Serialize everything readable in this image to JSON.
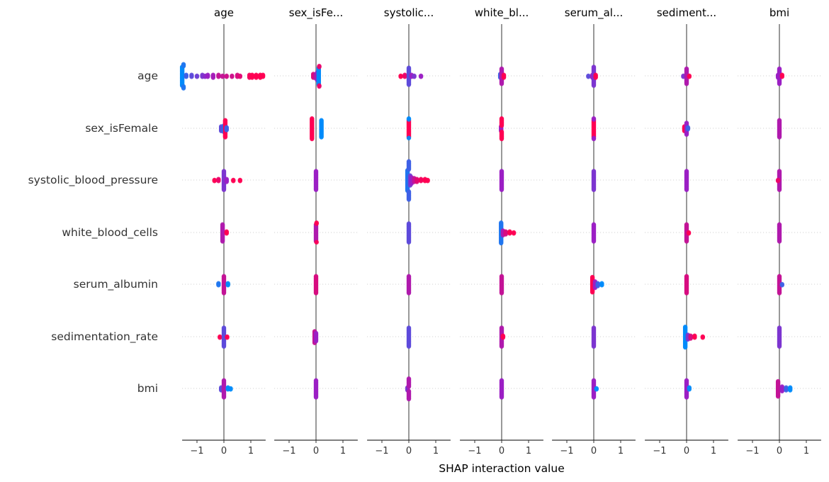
{
  "chart_data": {
    "type": "scatter",
    "subtype": "beeswarm-interaction-grid",
    "xlabel": "SHAP interaction value",
    "xlim": [
      -1.55,
      1.55
    ],
    "xticks": [
      -1,
      0,
      1
    ],
    "xtick_labels": [
      "−1",
      "0",
      "1"
    ],
    "grid": false,
    "colors": {
      "low": "#008bfb",
      "mid": "#9b1fc4",
      "high": "#ff0052",
      "zero_line": "#999999",
      "row_line": "#cccccc"
    },
    "panel_titles": [
      "age",
      "sex_isFe...",
      "systolic...",
      "white_bl...",
      "serum_al...",
      "sediment...",
      "bmi"
    ],
    "row_labels": [
      "age",
      "sex_isFemale",
      "systolic_blood_pressure",
      "white_blood_cells",
      "serum_albumin",
      "sedimentation_rate",
      "bmi"
    ],
    "point_format": [
      "shap_value",
      "feature_value_0_to_1",
      "count"
    ],
    "cells": [
      [
        [
          [
            -1.55,
            0,
            22
          ],
          [
            -1.5,
            0.1,
            6
          ],
          [
            -1.4,
            0.2,
            3
          ],
          [
            -1.2,
            0.3,
            3
          ],
          [
            -1.0,
            0.35,
            2
          ],
          [
            -0.8,
            0.4,
            3
          ],
          [
            -0.7,
            0.45,
            2
          ],
          [
            -0.6,
            0.5,
            3
          ],
          [
            -0.4,
            0.55,
            4
          ],
          [
            -0.2,
            0.7,
            3
          ],
          [
            -0.05,
            0.7,
            2
          ],
          [
            0.1,
            0.75,
            2
          ],
          [
            0.3,
            0.75,
            2
          ],
          [
            0.5,
            0.8,
            3
          ],
          [
            0.6,
            0.85,
            2
          ],
          [
            0.95,
            0.95,
            4
          ],
          [
            1.05,
            1,
            4
          ],
          [
            1.2,
            1,
            4
          ],
          [
            1.35,
            1,
            4
          ],
          [
            1.45,
            1,
            3
          ]
        ],
        [
          [
            -0.1,
            0.8,
            5
          ],
          [
            0,
            0.6,
            6
          ],
          [
            0.05,
            0.5,
            4
          ],
          [
            0.1,
            0,
            20
          ],
          [
            0.12,
            0.9,
            4
          ]
        ],
        [
          [
            -0.3,
            1,
            2
          ],
          [
            -0.15,
            0.9,
            3
          ],
          [
            0,
            0.3,
            20
          ],
          [
            0.1,
            0.5,
            3
          ],
          [
            0.2,
            0.4,
            2
          ],
          [
            0.45,
            0.5,
            2
          ]
        ],
        [
          [
            -0.05,
            0.2,
            5
          ],
          [
            0,
            0.6,
            18
          ],
          [
            0.08,
            1,
            4
          ]
        ],
        [
          [
            -0.2,
            0.3,
            2
          ],
          [
            -0.05,
            0.5,
            4
          ],
          [
            0,
            0.4,
            18
          ],
          [
            0.07,
            1,
            4
          ]
        ],
        [
          [
            -0.12,
            0.4,
            2
          ],
          [
            0,
            0.6,
            18
          ],
          [
            0.1,
            1,
            2
          ]
        ],
        [
          [
            -0.05,
            0.5,
            4
          ],
          [
            0,
            0.5,
            18
          ],
          [
            0.1,
            1,
            3
          ]
        ]
      ],
      [
        [
          [
            -0.1,
            0.3,
            6
          ],
          [
            0,
            0.1,
            8
          ],
          [
            0.05,
            1,
            20
          ],
          [
            0.1,
            0.2,
            4
          ]
        ],
        [
          [
            -0.15,
            1,
            24
          ],
          [
            0.2,
            0,
            20
          ]
        ],
        [
          [
            0,
            1,
            20
          ],
          [
            0,
            0,
            3
          ]
        ],
        [
          [
            -0.02,
            0.5,
            6
          ],
          [
            0,
            1,
            18
          ]
        ],
        [
          [
            0,
            1,
            20
          ],
          [
            0,
            0.5,
            4
          ]
        ],
        [
          [
            -0.08,
            1,
            6
          ],
          [
            0,
            0.5,
            14
          ],
          [
            0.05,
            0.2,
            3
          ]
        ],
        [
          [
            0,
            0.6,
            20
          ]
        ]
      ],
      [
        [
          [
            -0.35,
            1,
            2
          ],
          [
            -0.2,
            0.9,
            3
          ],
          [
            0,
            0.4,
            22
          ],
          [
            0.1,
            0.5,
            4
          ],
          [
            0.35,
            1,
            2
          ],
          [
            0.6,
            1,
            2
          ]
        ],
        [
          [
            0,
            0.5,
            22
          ]
        ],
        [
          [
            -0.05,
            0.1,
            24
          ],
          [
            0,
            0.2,
            20
          ],
          [
            0.05,
            0.35,
            12
          ],
          [
            0.1,
            0.5,
            8
          ],
          [
            0.2,
            0.7,
            5
          ],
          [
            0.3,
            0.85,
            4
          ],
          [
            0.45,
            0.95,
            3
          ],
          [
            0.6,
            1,
            3
          ],
          [
            0.7,
            1,
            2
          ]
        ],
        [
          [
            0,
            0.5,
            22
          ]
        ],
        [
          [
            0,
            0.4,
            22
          ]
        ],
        [
          [
            0,
            0.5,
            22
          ]
        ],
        [
          [
            0,
            0.6,
            22
          ],
          [
            -0.05,
            0.9,
            2
          ]
        ]
      ],
      [
        [
          [
            -0.05,
            0.6,
            20
          ],
          [
            0.1,
            1,
            3
          ]
        ],
        [
          [
            0,
            0.6,
            20
          ],
          [
            0.02,
            1,
            3
          ]
        ],
        [
          [
            0,
            0.3,
            22
          ]
        ],
        [
          [
            -0.02,
            0.1,
            24
          ],
          [
            0.05,
            0.6,
            6
          ],
          [
            0.15,
            0.8,
            4
          ],
          [
            0.3,
            1,
            3
          ],
          [
            0.45,
            1,
            2
          ]
        ],
        [
          [
            0,
            0.5,
            20
          ]
        ],
        [
          [
            0,
            0.7,
            20
          ],
          [
            0.08,
            1,
            2
          ]
        ],
        [
          [
            0,
            0.6,
            20
          ]
        ]
      ],
      [
        [
          [
            -0.2,
            0.1,
            3
          ],
          [
            0,
            0.7,
            20
          ],
          [
            0.15,
            0,
            3
          ]
        ],
        [
          [
            0,
            0.8,
            20
          ]
        ],
        [
          [
            0,
            0.6,
            20
          ]
        ],
        [
          [
            0,
            0.7,
            20
          ]
        ],
        [
          [
            -0.05,
            1,
            18
          ],
          [
            0.05,
            0.5,
            8
          ],
          [
            0.15,
            0.2,
            4
          ],
          [
            0.3,
            0,
            3
          ]
        ],
        [
          [
            0,
            0.8,
            20
          ]
        ],
        [
          [
            0,
            0.7,
            20
          ],
          [
            0.1,
            0.2,
            2
          ]
        ]
      ],
      [
        [
          [
            -0.15,
            1,
            2
          ],
          [
            0,
            0.3,
            22
          ],
          [
            0.12,
            1,
            2
          ]
        ],
        [
          [
            -0.05,
            0.7,
            14
          ],
          [
            0,
            0.5,
            10
          ]
        ],
        [
          [
            0,
            0.3,
            22
          ]
        ],
        [
          [
            0,
            0.6,
            22
          ],
          [
            0.05,
            1,
            3
          ]
        ],
        [
          [
            0,
            0.4,
            22
          ]
        ],
        [
          [
            -0.05,
            0,
            24
          ],
          [
            0.05,
            0.4,
            6
          ],
          [
            0.15,
            0.8,
            4
          ],
          [
            0.3,
            1,
            3
          ],
          [
            0.6,
            1,
            2
          ]
        ],
        [
          [
            0,
            0.4,
            22
          ]
        ]
      ],
      [
        [
          [
            -0.1,
            0.3,
            4
          ],
          [
            0,
            0.6,
            20
          ],
          [
            0.15,
            0,
            3
          ],
          [
            0.25,
            0,
            2
          ]
        ],
        [
          [
            0,
            0.5,
            20
          ]
        ],
        [
          [
            -0.05,
            0.4,
            4
          ],
          [
            0,
            0.6,
            20
          ]
        ],
        [
          [
            0,
            0.5,
            20
          ]
        ],
        [
          [
            0,
            0.5,
            20
          ],
          [
            0.1,
            0,
            2
          ]
        ],
        [
          [
            0,
            0.5,
            20
          ],
          [
            0.1,
            0,
            3
          ]
        ],
        [
          [
            -0.05,
            0.7,
            18
          ],
          [
            0.1,
            0.5,
            6
          ],
          [
            0.25,
            0.2,
            4
          ],
          [
            0.4,
            0,
            4
          ]
        ]
      ]
    ]
  }
}
